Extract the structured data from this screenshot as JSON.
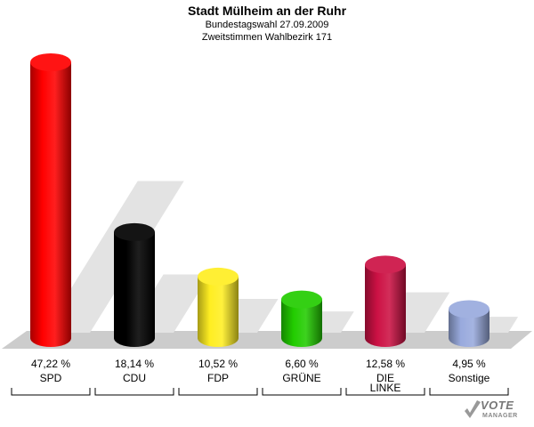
{
  "header": {
    "title": "Stadt Mülheim an der Ruhr",
    "subtitle1": "Bundestagswahl 27.09.2009",
    "subtitle2": "Zweitstimmen Wahlbezirk 171"
  },
  "chart_data": {
    "type": "bar",
    "title": "Stadt Mülheim an der Ruhr",
    "subtitle": "Bundestagswahl 27.09.2009 / Zweitstimmen Wahlbezirk 171",
    "categories": [
      "SPD",
      "CDU",
      "FDP",
      "GRÜNE",
      "DIE LINKE",
      "Sonstige"
    ],
    "category_labels": [
      [
        "SPD"
      ],
      [
        "CDU"
      ],
      [
        "FDP"
      ],
      [
        "GRÜNE"
      ],
      [
        "DIE",
        "LINKE"
      ],
      [
        "Sonstige"
      ]
    ],
    "values": [
      47.22,
      18.14,
      10.52,
      6.6,
      12.58,
      4.95
    ],
    "value_labels": [
      "47,22 %",
      "18,14 %",
      "10,52 %",
      "6,60 %",
      "12,58 %",
      "4,95 %"
    ],
    "colors": [
      "#ff0000",
      "#000000",
      "#ffee22",
      "#22cc00",
      "#cc1144",
      "#99aadd"
    ],
    "xlabel": "",
    "ylabel": "",
    "ylim": [
      0,
      47.22
    ],
    "grid": false
  },
  "logo": {
    "line1": "VOTE",
    "line2": "MANAGER"
  }
}
